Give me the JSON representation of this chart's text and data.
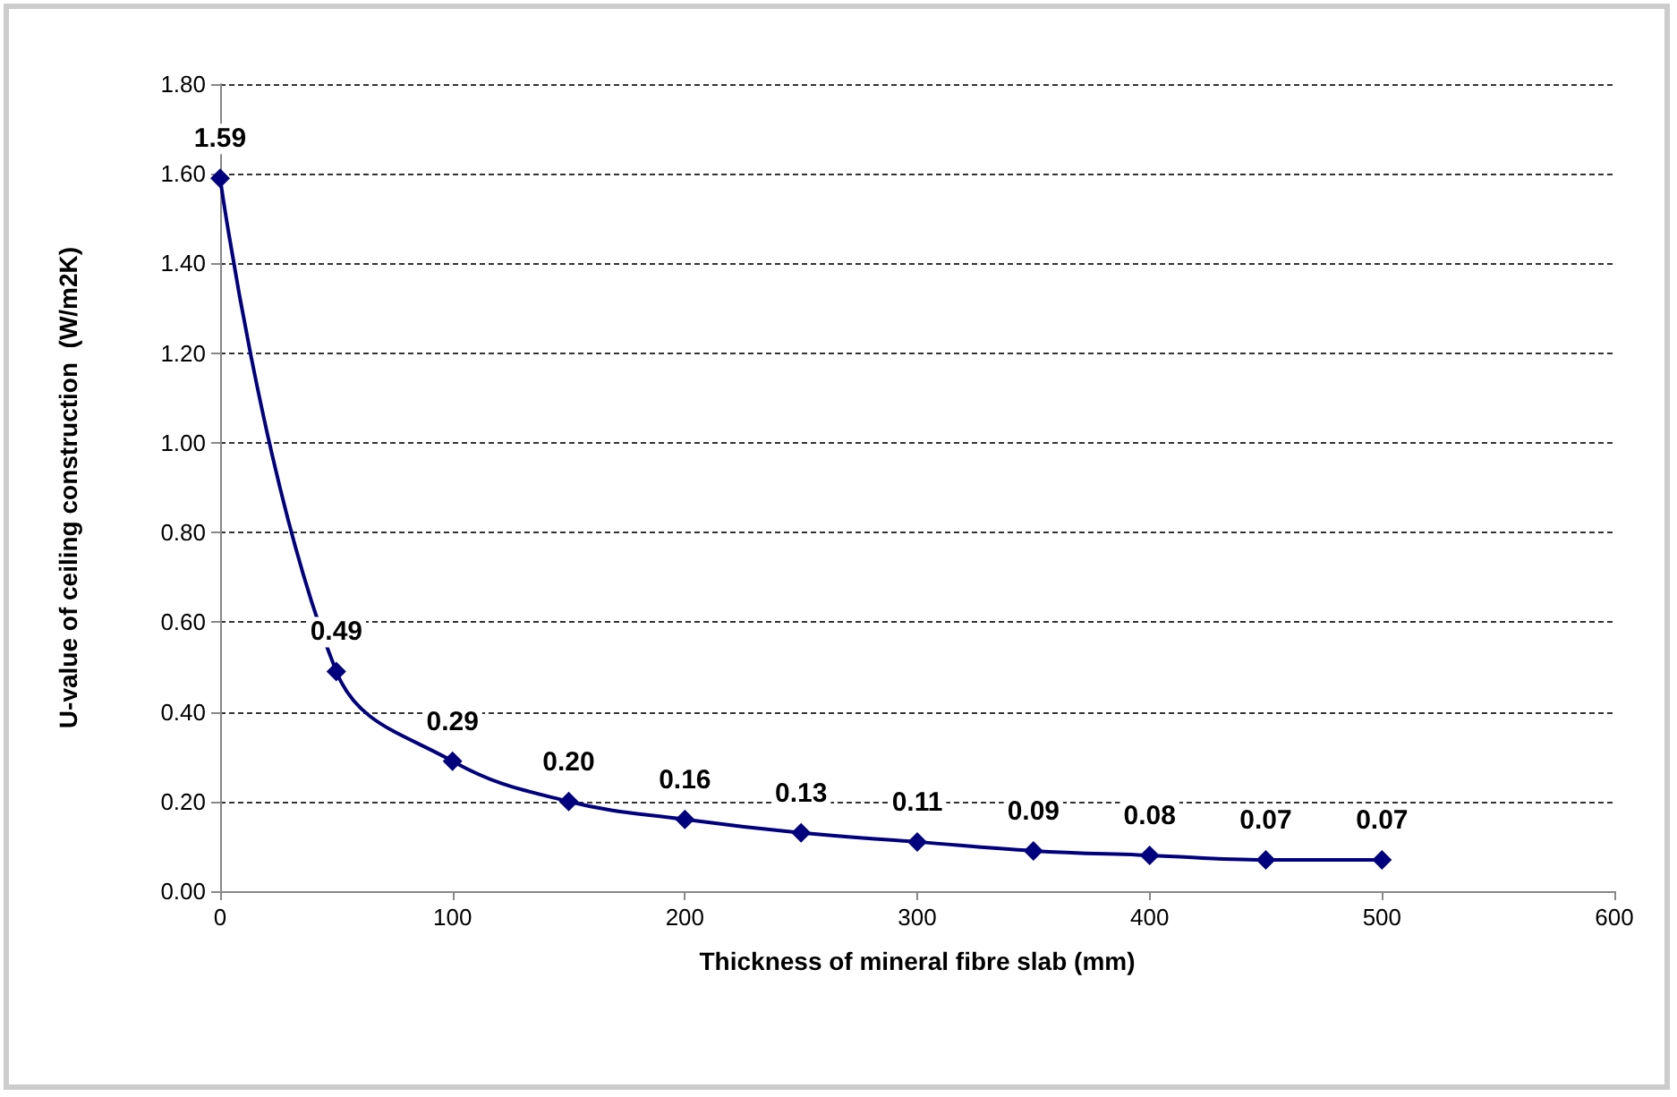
{
  "chart_data": {
    "type": "line",
    "xlabel": "Thickness of mineral fibre slab (mm)",
    "ylabel": "U-value of ceiling construction  (W/m2K)",
    "x": [
      0,
      50,
      100,
      150,
      200,
      250,
      300,
      350,
      400,
      450,
      500
    ],
    "series": [
      {
        "color": "#00007f",
        "values": [
          1.59,
          0.49,
          0.29,
          0.2,
          0.16,
          0.13,
          0.11,
          0.09,
          0.08,
          0.07,
          0.07
        ],
        "value_labels": [
          "1.59",
          "0.49",
          "0.29",
          "0.20",
          "0.16",
          "0.13",
          "0.11",
          "0.09",
          "0.08",
          "0.07",
          "0.07"
        ]
      }
    ],
    "xlim": [
      0,
      600
    ],
    "xticks": [
      0,
      100,
      200,
      300,
      400,
      500,
      600
    ],
    "ylim": [
      0,
      1.8
    ],
    "yticks": [
      {
        "value": 0,
        "label": "0.00"
      },
      {
        "value": 0.2,
        "label": "0.20"
      },
      {
        "value": 0.4,
        "label": "0.40"
      },
      {
        "value": 0.6,
        "label": "0.60"
      },
      {
        "value": 0.8,
        "label": "0.80"
      },
      {
        "value": 1,
        "label": "1.00"
      },
      {
        "value": 1.2,
        "label": "1.20"
      },
      {
        "value": 1.4,
        "label": "1.40"
      },
      {
        "value": 1.6,
        "label": "1.60"
      },
      {
        "value": 1.8,
        "label": "1.80"
      }
    ],
    "grid": "y",
    "marker": "diamond",
    "line_style": "solid"
  }
}
